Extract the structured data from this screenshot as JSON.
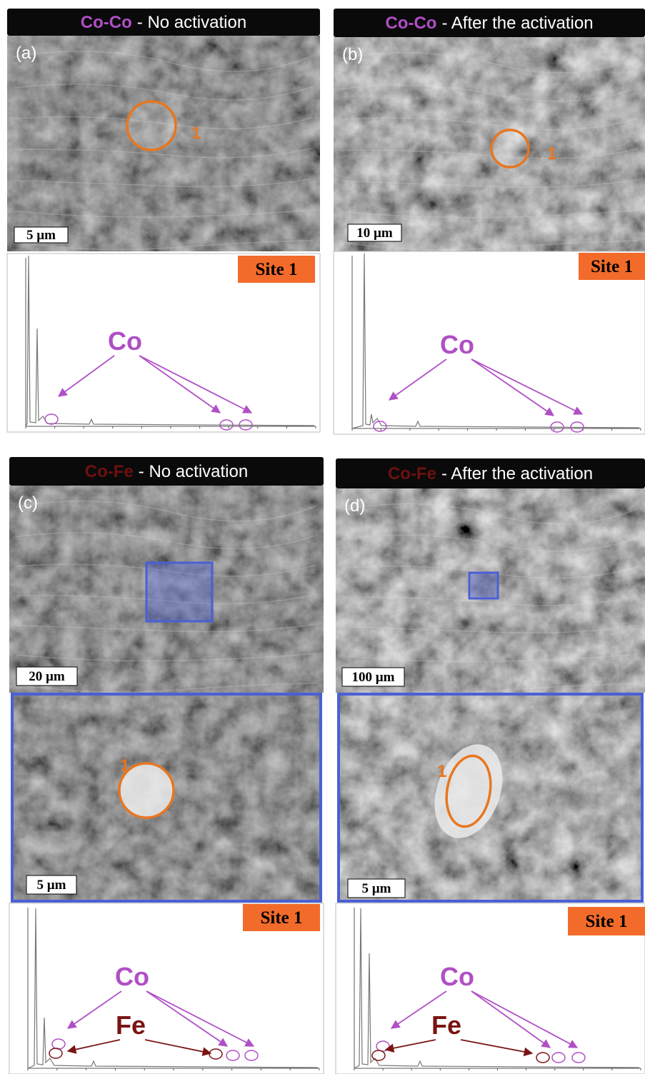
{
  "panels": [
    {
      "sample": "Co-Co",
      "condition": "- No activation",
      "label": "(a)",
      "scale_bar": "5 µm",
      "site_marker": "1",
      "site": "Site 1",
      "elements": [
        "Co"
      ]
    },
    {
      "sample": "Co-Co",
      "condition": "- After the activation",
      "label": "(b)",
      "scale_bar": "10 µm",
      "site_marker": "1",
      "site": "Site 1",
      "elements": [
        "Co"
      ]
    },
    {
      "sample": "Co-Fe",
      "condition": "- No activation",
      "label": "(c)",
      "scale_bar": "20 µm",
      "inset_scale_bar": "5 µm",
      "site_marker": "1",
      "site": "Site 1",
      "elements": [
        "Co",
        "Fe"
      ]
    },
    {
      "sample": "Co-Fe",
      "condition": "- After the activation",
      "label": "(d)",
      "scale_bar": "100 µm",
      "inset_scale_bar": "5 µm",
      "site_marker": "1",
      "site": "Site 1",
      "elements": [
        "Co",
        "Fe"
      ]
    }
  ]
}
